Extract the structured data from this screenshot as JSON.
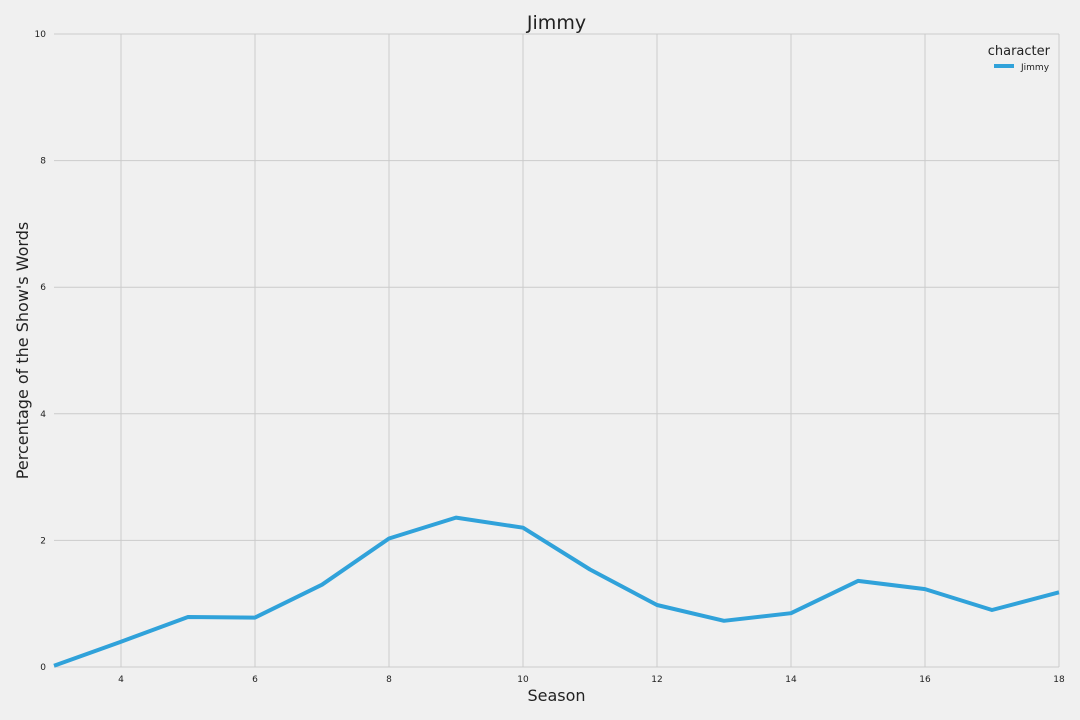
{
  "chart_data": {
    "type": "line",
    "title": "Jimmy",
    "xlabel": "Season",
    "ylabel": "Percentage of the Show's Words",
    "xlim": [
      3,
      18
    ],
    "ylim": [
      0,
      10
    ],
    "xticks": [
      4,
      6,
      8,
      10,
      12,
      14,
      16,
      18
    ],
    "yticks": [
      0,
      2,
      4,
      6,
      8,
      10
    ],
    "grid": true,
    "legend": {
      "title": "character",
      "placement": "top-right"
    },
    "series": [
      {
        "name": "Jimmy",
        "color": "#30a2da",
        "x": [
          3,
          4,
          5,
          6,
          7,
          8,
          9,
          10,
          11,
          12,
          13,
          14,
          15,
          16,
          17,
          18
        ],
        "y": [
          0.02,
          0.4,
          0.79,
          0.78,
          1.3,
          2.03,
          2.36,
          2.2,
          1.54,
          0.98,
          0.73,
          0.85,
          1.36,
          1.23,
          0.9,
          1.18
        ]
      }
    ]
  }
}
